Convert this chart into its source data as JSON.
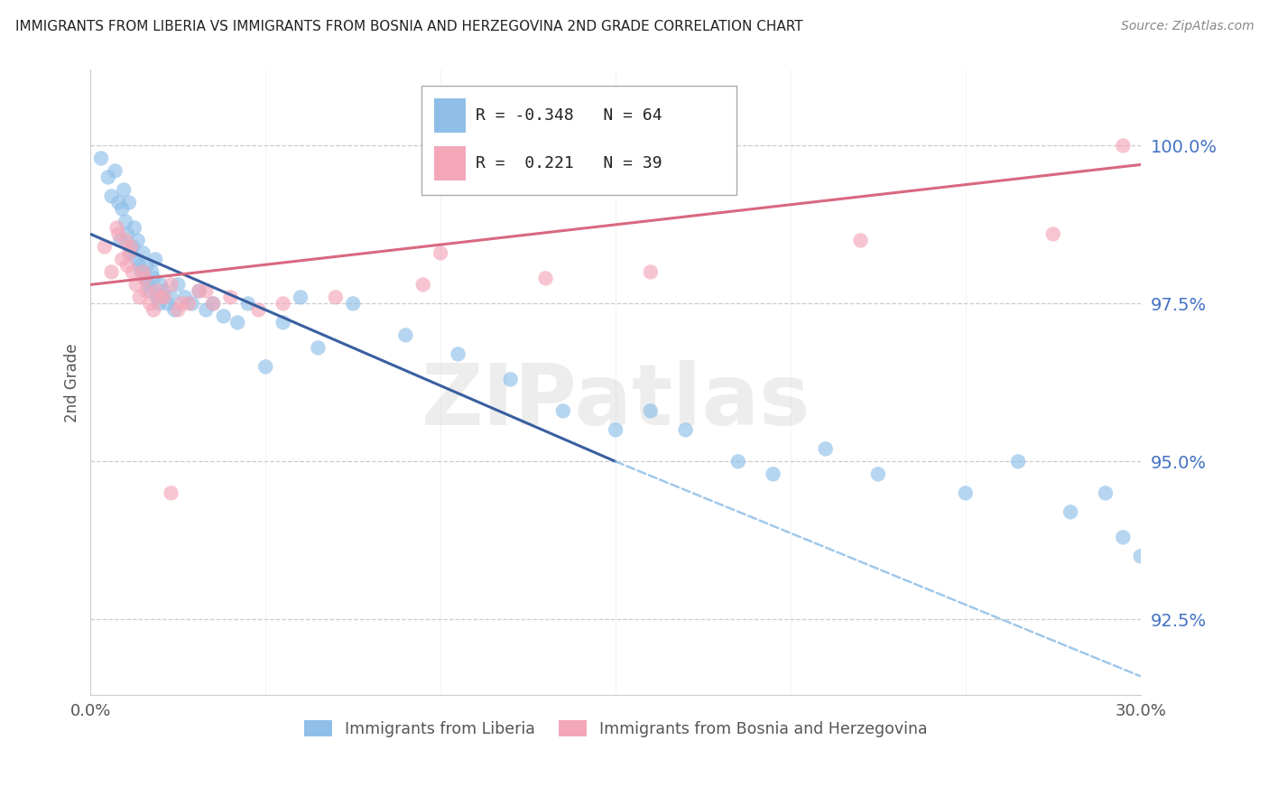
{
  "title": "IMMIGRANTS FROM LIBERIA VS IMMIGRANTS FROM BOSNIA AND HERZEGOVINA 2ND GRADE CORRELATION CHART",
  "source": "Source: ZipAtlas.com",
  "ylabel": "2nd Grade",
  "yticks": [
    92.5,
    95.0,
    97.5,
    100.0
  ],
  "ytick_labels": [
    "92.5%",
    "95.0%",
    "97.5%",
    "100.0%"
  ],
  "xlim": [
    0.0,
    30.0
  ],
  "ylim": [
    91.3,
    101.2
  ],
  "legend_blue_r": "-0.348",
  "legend_blue_n": "64",
  "legend_pink_r": " 0.221",
  "legend_pink_n": "39",
  "legend_label_blue": "Immigrants from Liberia",
  "legend_label_pink": "Immigrants from Bosnia and Herzegovina",
  "blue_color": "#8fbfe8",
  "pink_color": "#f4a7b9",
  "line_blue_color": "#3a5fa0",
  "line_pink_color": "#d96880",
  "watermark": "ZIPatlas",
  "blue_line_x0": 0.0,
  "blue_line_y0": 98.6,
  "blue_line_x1": 15.0,
  "blue_line_y1": 95.0,
  "blue_dash_x0": 15.0,
  "blue_dash_y0": 95.0,
  "blue_dash_x1": 30.0,
  "blue_dash_y1": 91.6,
  "pink_line_x0": 0.0,
  "pink_line_y0": 97.8,
  "pink_line_x1": 30.0,
  "pink_line_y1": 99.7,
  "blue_x": [
    0.3,
    0.5,
    0.6,
    0.7,
    0.8,
    0.85,
    0.9,
    0.95,
    1.0,
    1.05,
    1.1,
    1.15,
    1.2,
    1.25,
    1.3,
    1.35,
    1.4,
    1.45,
    1.5,
    1.55,
    1.6,
    1.65,
    1.7,
    1.75,
    1.8,
    1.85,
    1.9,
    1.95,
    2.0,
    2.1,
    2.2,
    2.3,
    2.4,
    2.5,
    2.7,
    2.9,
    3.1,
    3.3,
    3.5,
    3.8,
    4.2,
    4.5,
    5.0,
    5.5,
    6.0,
    6.5,
    7.5,
    9.0,
    10.5,
    12.0,
    13.5,
    15.0,
    16.0,
    17.0,
    18.5,
    19.5,
    21.0,
    22.5,
    25.0,
    26.5,
    28.0,
    29.0,
    29.5,
    30.0
  ],
  "blue_y": [
    99.8,
    99.5,
    99.2,
    99.6,
    99.1,
    98.5,
    99.0,
    99.3,
    98.8,
    98.6,
    99.1,
    98.3,
    98.4,
    98.7,
    98.2,
    98.5,
    98.1,
    98.0,
    98.3,
    97.9,
    98.1,
    97.8,
    97.7,
    98.0,
    97.9,
    98.2,
    97.6,
    97.5,
    97.8,
    97.7,
    97.5,
    97.6,
    97.4,
    97.8,
    97.6,
    97.5,
    97.7,
    97.4,
    97.5,
    97.3,
    97.2,
    97.5,
    96.5,
    97.2,
    97.6,
    96.8,
    97.5,
    97.0,
    96.7,
    96.3,
    95.8,
    95.5,
    95.8,
    95.5,
    95.0,
    94.8,
    95.2,
    94.8,
    94.5,
    95.0,
    94.2,
    94.5,
    93.8,
    93.5
  ],
  "pink_x": [
    0.4,
    0.6,
    0.8,
    0.9,
    1.0,
    1.1,
    1.2,
    1.3,
    1.4,
    1.5,
    1.6,
    1.7,
    1.9,
    2.1,
    2.3,
    2.5,
    2.8,
    3.1,
    3.5,
    4.0,
    4.8,
    5.5,
    7.0,
    9.5,
    13.0,
    16.0,
    22.0,
    27.5,
    29.5,
    0.75,
    1.05,
    1.55,
    2.0,
    2.6,
    3.3,
    1.15,
    1.8,
    2.3,
    10.0
  ],
  "pink_y": [
    98.4,
    98.0,
    98.6,
    98.2,
    98.5,
    98.3,
    98.0,
    97.8,
    97.6,
    98.0,
    97.7,
    97.5,
    97.7,
    97.6,
    97.8,
    97.4,
    97.5,
    97.7,
    97.5,
    97.6,
    97.4,
    97.5,
    97.6,
    97.8,
    97.9,
    98.0,
    98.5,
    98.6,
    100.0,
    98.7,
    98.1,
    97.9,
    97.6,
    97.5,
    97.7,
    98.4,
    97.4,
    94.5,
    98.3
  ]
}
